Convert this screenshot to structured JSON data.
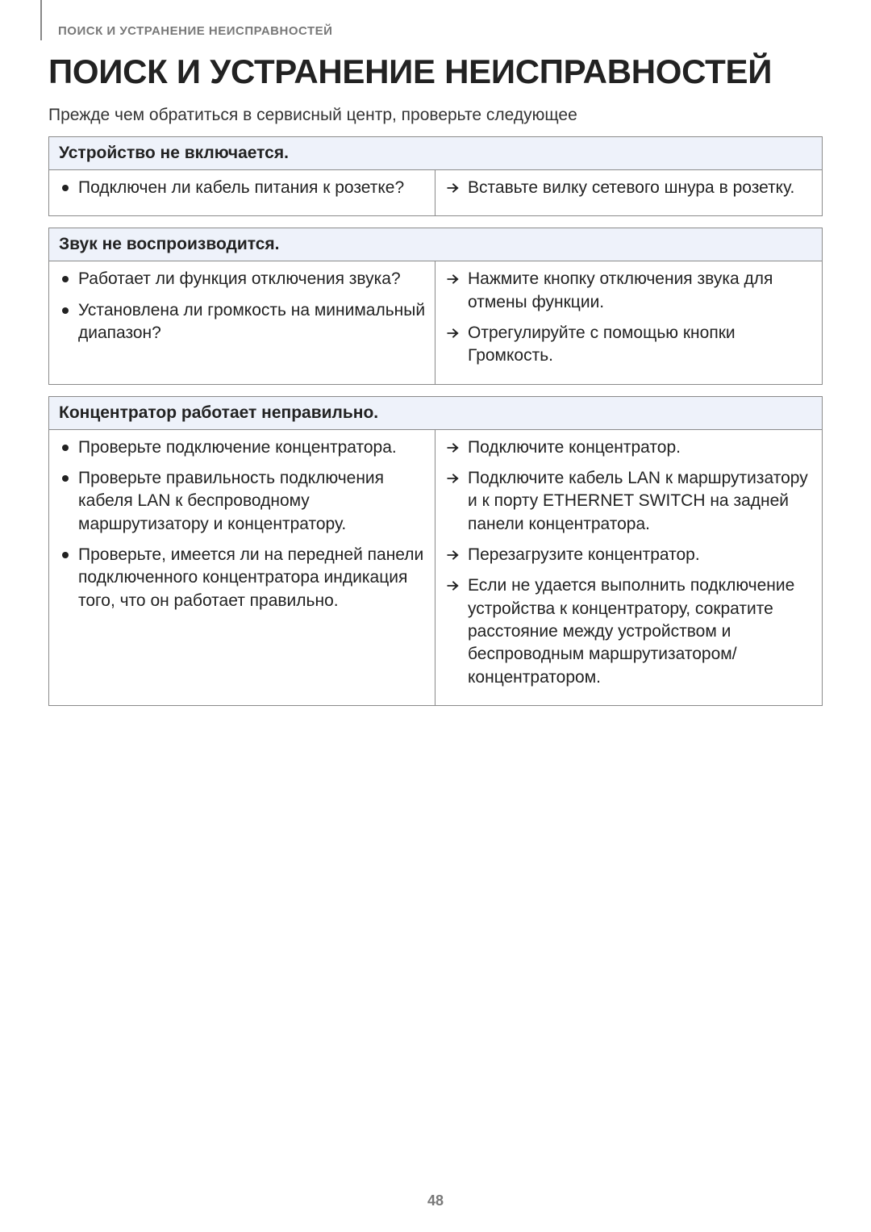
{
  "page": {
    "running_head": "ПОИСК И УСТРАНЕНИЕ НЕИСПРАВНОСТЕЙ",
    "title": "ПОИСК И УСТРАНЕНИЕ НЕИСПРАВНОСТЕЙ",
    "intro": "Прежде чем обратиться в сервисный центр, проверьте следующее",
    "page_number": "48"
  },
  "colors": {
    "header_bg": "#eef2fa",
    "border": "#8a8a8a",
    "text": "#222222",
    "muted": "#787878",
    "bg": "#ffffff"
  },
  "typography": {
    "title_fontsize": 42,
    "body_fontsize": 21,
    "running_head_fontsize": 15,
    "page_num_fontsize": 18,
    "font_family": "Arial"
  },
  "sections": [
    {
      "header": "Устройство не включается.",
      "checks": [
        "Подключен ли кабель питания к розетке?"
      ],
      "actions": [
        "Вставьте вилку сетевого шнура в розетку."
      ]
    },
    {
      "header": "Звук не воспроизводится.",
      "checks": [
        "Работает ли функция отключения звука?",
        "Установлена ли громкость на минимальный диапазон?"
      ],
      "actions": [
        "Нажмите кнопку отключения звука для отмены функции.",
        "Отрегулируйте с помощью кнопки Громкость."
      ]
    },
    {
      "header": "Концентратор работает неправильно.",
      "checks": [
        "Проверьте подключение концентратора.",
        "Проверьте правильность подключения кабеля LAN к беспроводному маршрутизатору и концентратору.",
        "Проверьте, имеется ли на передней панели подключенного концентратора индикация того, что он работает правильно."
      ],
      "actions": [
        "Подключите концентратор.",
        "Подключите кабель LAN к маршрутизатору и к порту ETHERNET SWITCH на задней панели концентратора.",
        "Перезагрузите концентратор.",
        "Если не удается выполнить подключение устройства к концентратору, сократите расстояние между устройством и беспроводным маршрутизатором/концентратором."
      ]
    }
  ]
}
